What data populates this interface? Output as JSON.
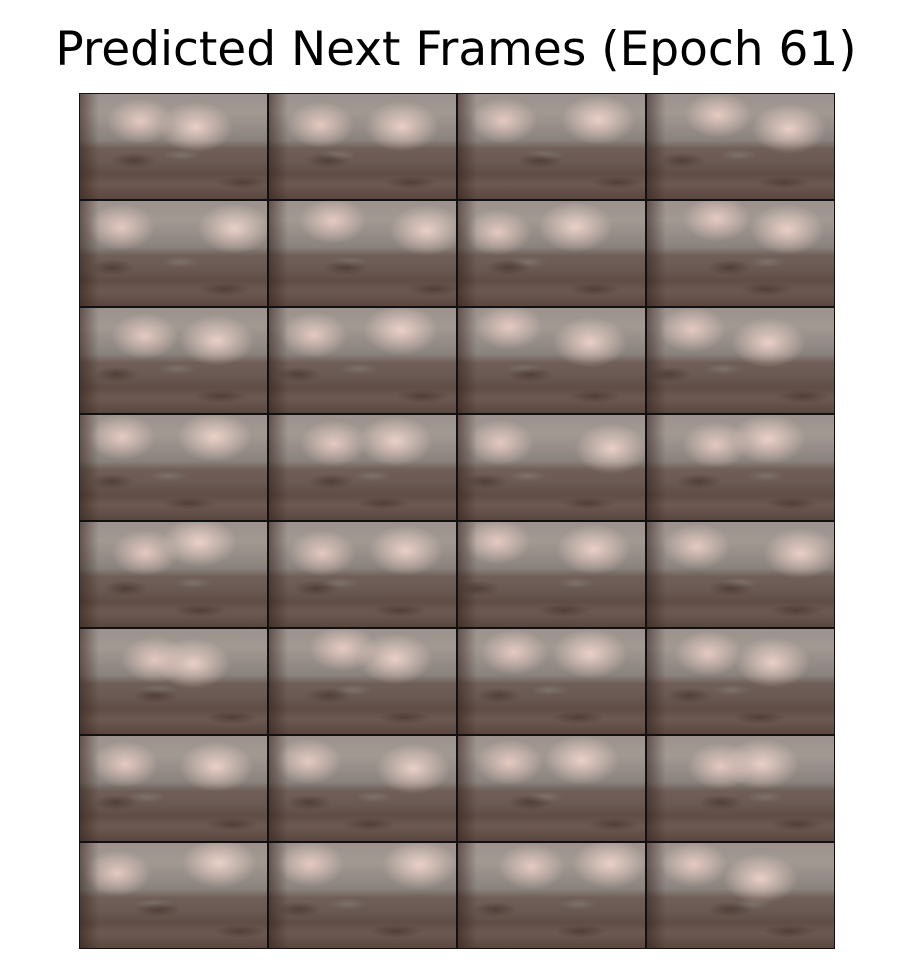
{
  "figure": {
    "title": "Predicted Next Frames (Epoch 61)"
  },
  "grid": {
    "rows": 8,
    "columns": 4,
    "frame_count": 32,
    "frame_description": "blurry predicted video frame: bright light blobs at top over grey-brown ground"
  }
}
